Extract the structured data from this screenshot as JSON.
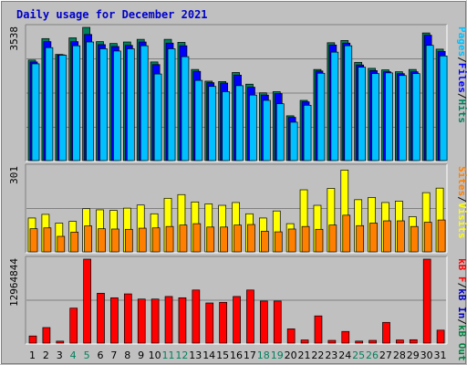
{
  "title": "Daily usage for December 2021",
  "colors": {
    "background": "#c0c0c0",
    "frame": "#ffffff",
    "hits": "#00805c",
    "files": "#0000ff",
    "pages": "#00c0ff",
    "visits": "#ffff00",
    "sites": "#ff8000",
    "kbytes": "#ff0000",
    "kbin": "#0000c0",
    "kbout": "#008040",
    "weekday_label": "#000000",
    "weekend_label": "#00805c",
    "title": "#0000c8"
  },
  "chart_data": [
    {
      "type": "bar",
      "panel": "hits-files-pages",
      "axis_max_label": "3538",
      "ylim": [
        0,
        3538
      ],
      "categories": [
        "1",
        "2",
        "3",
        "4",
        "5",
        "6",
        "7",
        "8",
        "9",
        "10",
        "11",
        "12",
        "13",
        "14",
        "15",
        "16",
        "17",
        "18",
        "19",
        "20",
        "21",
        "22",
        "23",
        "24",
        "25",
        "26",
        "27",
        "28",
        "29",
        "30",
        "31"
      ],
      "weekend_days": [
        "4",
        "5",
        "11",
        "12",
        "18",
        "19",
        "25",
        "26"
      ],
      "side_labels": [
        {
          "text": "Pages",
          "color": "#00c0ff"
        },
        {
          "text": "/",
          "color": "#000000"
        },
        {
          "text": "Files",
          "color": "#0000ff"
        },
        {
          "text": "/",
          "color": "#000000"
        },
        {
          "text": "Hits",
          "color": "#00805c"
        }
      ],
      "series": [
        {
          "name": "Hits",
          "values": [
            2670,
            3240,
            2820,
            3260,
            3538,
            3160,
            3110,
            3150,
            3220,
            2620,
            3220,
            3140,
            2420,
            2110,
            2100,
            2340,
            2030,
            1800,
            1830,
            1190,
            1600,
            2420,
            3130,
            3190,
            2610,
            2450,
            2410,
            2360,
            2420,
            3390,
            2960
          ]
        },
        {
          "name": "Files",
          "values": [
            2620,
            3160,
            2810,
            3160,
            3350,
            3080,
            3030,
            3060,
            3150,
            2550,
            3120,
            3050,
            2370,
            2070,
            2060,
            2270,
            1950,
            1740,
            1780,
            1150,
            1560,
            2380,
            3070,
            3120,
            2540,
            2390,
            2360,
            2310,
            2360,
            3330,
            2900
          ]
        },
        {
          "name": "Pages",
          "values": [
            2570,
            3000,
            2800,
            3050,
            3150,
            2970,
            2910,
            2970,
            3050,
            2300,
            2970,
            2760,
            2130,
            1970,
            1830,
            1990,
            1740,
            1600,
            1510,
            1020,
            1470,
            2320,
            2880,
            3050,
            2480,
            2310,
            2330,
            2260,
            2310,
            3060,
            2780
          ]
        }
      ]
    },
    {
      "type": "bar",
      "panel": "visits-sites",
      "axis_max_label": "301",
      "ylim": [
        0,
        301
      ],
      "categories": [
        "1",
        "2",
        "3",
        "4",
        "5",
        "6",
        "7",
        "8",
        "9",
        "10",
        "11",
        "12",
        "13",
        "14",
        "15",
        "16",
        "17",
        "18",
        "19",
        "20",
        "21",
        "22",
        "23",
        "24",
        "25",
        "26",
        "27",
        "28",
        "29",
        "30",
        "31"
      ],
      "side_labels": [
        {
          "text": "Sites",
          "color": "#ff8000"
        },
        {
          "text": "/",
          "color": "#000000"
        },
        {
          "text": "Visits",
          "color": "#ffff00"
        }
      ],
      "series": [
        {
          "name": "Visits",
          "values": [
            120,
            133,
            102,
            108,
            153,
            149,
            147,
            155,
            166,
            135,
            190,
            203,
            177,
            170,
            165,
            175,
            135,
            120,
            145,
            100,
            220,
            165,
            225,
            290,
            185,
            193,
            175,
            180,
            125,
            210,
            226
          ]
        },
        {
          "name": "Sites",
          "values": [
            82,
            85,
            55,
            70,
            92,
            82,
            81,
            80,
            84,
            85,
            90,
            95,
            100,
            88,
            88,
            95,
            97,
            73,
            71,
            81,
            90,
            80,
            95,
            130,
            93,
            102,
            110,
            110,
            90,
            105,
            113
          ]
        }
      ]
    },
    {
      "type": "bar",
      "panel": "kbytes",
      "axis_max_label": "12964844",
      "ylim": [
        0,
        12964844
      ],
      "categories": [
        "1",
        "2",
        "3",
        "4",
        "5",
        "6",
        "7",
        "8",
        "9",
        "10",
        "11",
        "12",
        "13",
        "14",
        "15",
        "16",
        "17",
        "18",
        "19",
        "20",
        "21",
        "22",
        "23",
        "24",
        "25",
        "26",
        "27",
        "28",
        "29",
        "30",
        "31"
      ],
      "side_labels": [
        {
          "text": "kB F",
          "color": "#ff0000"
        },
        {
          "text": "/",
          "color": "#000000"
        },
        {
          "text": "kB In",
          "color": "#0000c0"
        },
        {
          "text": "/",
          "color": "#000000"
        },
        {
          "text": "kB Out",
          "color": "#008040"
        }
      ],
      "series": [
        {
          "name": "kB F",
          "values": [
            1100000,
            2400000,
            300000,
            5400000,
            12964844,
            7700000,
            7000000,
            7600000,
            6800000,
            6800000,
            7200000,
            7000000,
            8200000,
            6200000,
            6300000,
            7200000,
            8200000,
            6500000,
            6500000,
            2200000,
            480000,
            4200000,
            420000,
            1800000,
            310000,
            420000,
            3200000,
            480000,
            520000,
            12964844,
            2000000
          ]
        }
      ]
    }
  ]
}
